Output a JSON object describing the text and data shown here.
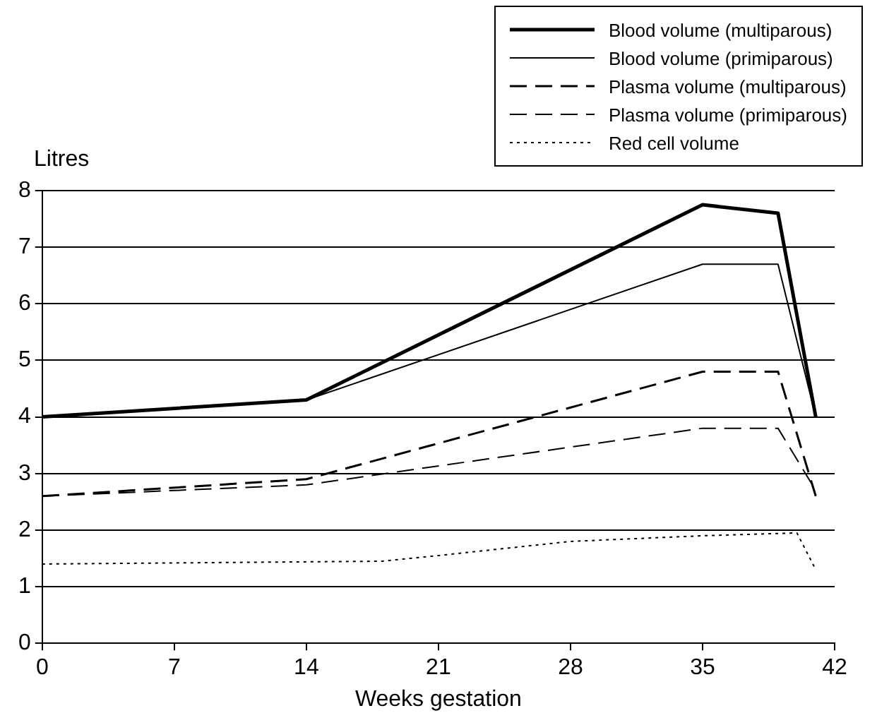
{
  "chart_data": {
    "type": "line",
    "xlabel": "Weeks gestation",
    "ylabel": "Litres",
    "xlim": [
      0,
      42
    ],
    "xticks": [
      0,
      7,
      14,
      21,
      28,
      35,
      42
    ],
    "ylim": [
      0,
      8
    ],
    "yticks": [
      0,
      1,
      2,
      3,
      4,
      5,
      6,
      7,
      8
    ],
    "grid": "y",
    "legend": "top right",
    "marker": "none",
    "series": [
      {
        "name": "Blood volume (multiparous)",
        "color": "#000000",
        "line_style": "solid",
        "x": [
          0,
          14,
          35,
          39,
          41
        ],
        "values": [
          4,
          4.3,
          7.75,
          7.6,
          4
        ]
      },
      {
        "name": "Blood volume (primiparous)",
        "color": "#000000",
        "line_style": "solid",
        "x": [
          0,
          14,
          35,
          39,
          41
        ],
        "values": [
          4,
          4.3,
          6.7,
          6.7,
          4
        ]
      },
      {
        "name": "Plasma volume (multiparous)",
        "color": "#000000",
        "line_style": "dashed",
        "x": [
          0,
          14,
          35,
          39,
          41
        ],
        "values": [
          2.6,
          2.9,
          4.8,
          4.8,
          2.6
        ]
      },
      {
        "name": "Plasma volume (primiparous)",
        "color": "#000000",
        "line_style": "dashed",
        "x": [
          0,
          14,
          35,
          39,
          41
        ],
        "values": [
          2.6,
          2.8,
          3.8,
          3.8,
          2.7
        ]
      },
      {
        "name": "Red cell volume",
        "color": "#000000",
        "line_style": "dotted",
        "x": [
          0,
          18,
          21,
          28,
          35,
          40,
          41
        ],
        "values": [
          1.4,
          1.45,
          1.55,
          1.8,
          1.9,
          1.95,
          1.3
        ]
      }
    ]
  }
}
